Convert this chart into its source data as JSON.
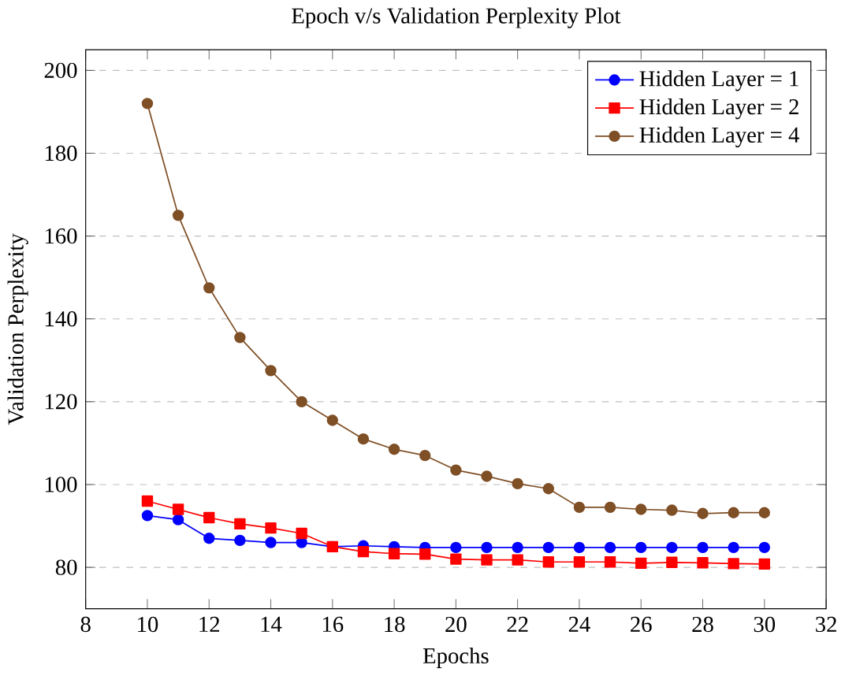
{
  "chart_data": {
    "type": "line",
    "title": "Epoch v/s Validation Perplexity Plot",
    "xlabel": "Epochs",
    "ylabel": "Validation Perplexity",
    "x": [
      10,
      11,
      12,
      13,
      14,
      15,
      16,
      17,
      18,
      19,
      20,
      21,
      22,
      23,
      24,
      25,
      26,
      27,
      28,
      29,
      30
    ],
    "xlim": [
      8,
      32
    ],
    "xticks": [
      8,
      10,
      12,
      14,
      16,
      18,
      20,
      22,
      24,
      26,
      28,
      30,
      32
    ],
    "ylim": [
      70,
      205
    ],
    "yticks": [
      80,
      100,
      120,
      140,
      160,
      180,
      200
    ],
    "grid": "y",
    "legend": "top right",
    "series": [
      {
        "name": "Hidden Layer = 1",
        "color": "#0000ff",
        "marker": "circle",
        "values": [
          92.5,
          91.5,
          87,
          86.5,
          86,
          86,
          85,
          85.2,
          85,
          84.8,
          84.8,
          84.8,
          84.8,
          84.8,
          84.8,
          84.8,
          84.8,
          84.8,
          84.8,
          84.8,
          84.8
        ]
      },
      {
        "name": "Hidden Layer = 2",
        "color": "#ff0000",
        "marker": "square",
        "values": [
          96,
          94,
          92,
          90.5,
          89.5,
          88.2,
          85,
          83.8,
          83.3,
          83.2,
          82,
          81.8,
          81.8,
          81.3,
          81.3,
          81.3,
          81,
          81.2,
          81.1,
          80.9,
          80.8
        ]
      },
      {
        "name": "Hidden Layer = 4",
        "color": "#7f4f26",
        "marker": "circle",
        "values": [
          192,
          165,
          147.5,
          135.5,
          127.5,
          120,
          115.5,
          111,
          108.5,
          107,
          103.5,
          102,
          100.2,
          99,
          94.5,
          94.5,
          94,
          93.8,
          93,
          93.2,
          93.2
        ]
      }
    ]
  }
}
